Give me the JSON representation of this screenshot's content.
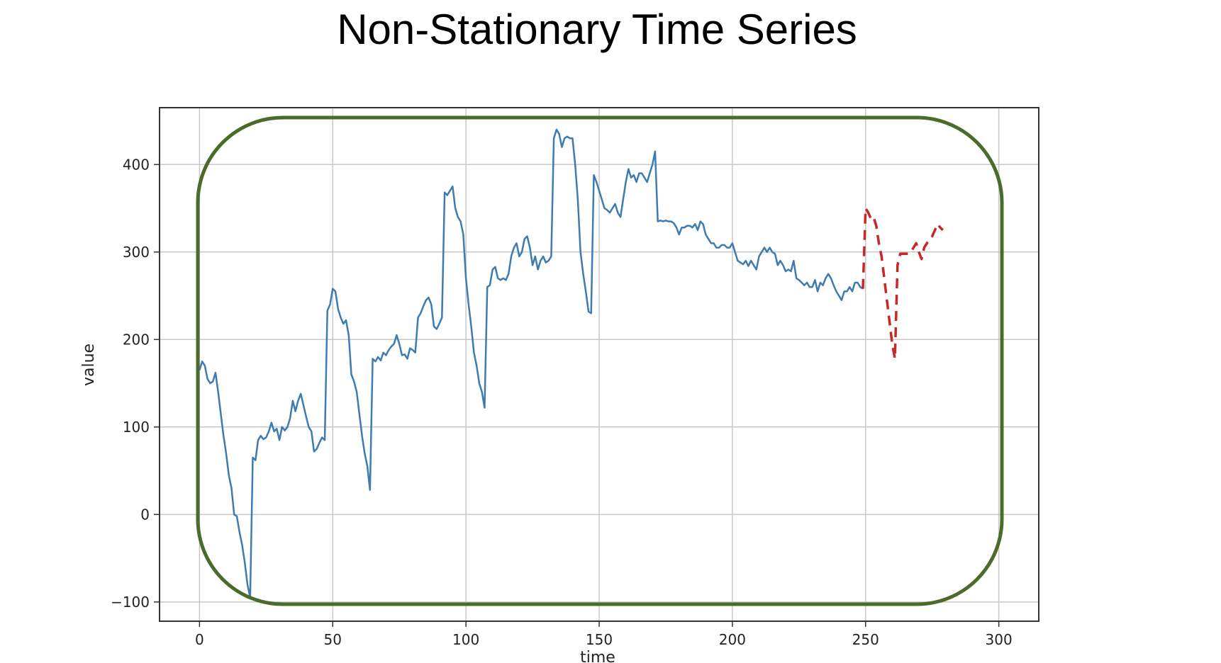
{
  "chart_data": {
    "type": "line",
    "title": "Non-Stationary Time Series",
    "xlabel": "time",
    "ylabel": "value",
    "xlim": [
      -15,
      315
    ],
    "ylim": [
      -122,
      465
    ],
    "grid": true,
    "xticks": [
      0,
      50,
      100,
      150,
      200,
      250,
      300
    ],
    "yticks": [
      -100,
      0,
      100,
      200,
      300,
      400
    ],
    "xtick_labels": [
      "0",
      "50",
      "100",
      "150",
      "200",
      "250",
      "300"
    ],
    "ytick_labels": [
      "−100",
      "0",
      "100",
      "200",
      "300",
      "400"
    ],
    "series": [
      {
        "color": "#3e7bb0",
        "style": "solid",
        "points": [
          [
            0,
            165
          ],
          [
            1,
            175
          ],
          [
            2,
            170
          ],
          [
            3,
            155
          ],
          [
            4,
            150
          ],
          [
            5,
            152
          ],
          [
            6,
            162
          ],
          [
            7,
            140
          ],
          [
            8,
            115
          ],
          [
            9,
            90
          ],
          [
            10,
            70
          ],
          [
            11,
            45
          ],
          [
            12,
            30
          ],
          [
            13,
            0
          ],
          [
            14,
            -2
          ],
          [
            15,
            -20
          ],
          [
            16,
            -35
          ],
          [
            17,
            -55
          ],
          [
            18,
            -80
          ],
          [
            19,
            -95
          ],
          [
            20,
            65
          ],
          [
            21,
            62
          ],
          [
            22,
            85
          ],
          [
            23,
            90
          ],
          [
            24,
            86
          ],
          [
            25,
            88
          ],
          [
            26,
            95
          ],
          [
            27,
            105
          ],
          [
            28,
            95
          ],
          [
            29,
            98
          ],
          [
            30,
            85
          ],
          [
            31,
            100
          ],
          [
            32,
            96
          ],
          [
            33,
            100
          ],
          [
            34,
            110
          ],
          [
            35,
            130
          ],
          [
            36,
            118
          ],
          [
            37,
            130
          ],
          [
            38,
            138
          ],
          [
            39,
            125
          ],
          [
            40,
            112
          ],
          [
            41,
            100
          ],
          [
            42,
            95
          ],
          [
            43,
            72
          ],
          [
            44,
            75
          ],
          [
            45,
            82
          ],
          [
            46,
            88
          ],
          [
            47,
            85
          ],
          [
            48,
            233
          ],
          [
            49,
            240
          ],
          [
            50,
            258
          ],
          [
            51,
            255
          ],
          [
            52,
            235
          ],
          [
            53,
            225
          ],
          [
            54,
            218
          ],
          [
            55,
            222
          ],
          [
            56,
            205
          ],
          [
            57,
            160
          ],
          [
            58,
            152
          ],
          [
            59,
            140
          ],
          [
            60,
            115
          ],
          [
            61,
            90
          ],
          [
            62,
            70
          ],
          [
            63,
            55
          ],
          [
            64,
            28
          ],
          [
            65,
            178
          ],
          [
            66,
            175
          ],
          [
            67,
            180
          ],
          [
            68,
            176
          ],
          [
            69,
            185
          ],
          [
            70,
            182
          ],
          [
            71,
            188
          ],
          [
            72,
            192
          ],
          [
            73,
            195
          ],
          [
            74,
            205
          ],
          [
            75,
            195
          ],
          [
            76,
            182
          ],
          [
            77,
            183
          ],
          [
            78,
            178
          ],
          [
            79,
            190
          ],
          [
            80,
            188
          ],
          [
            81,
            185
          ],
          [
            82,
            225
          ],
          [
            83,
            230
          ],
          [
            84,
            238
          ],
          [
            85,
            245
          ],
          [
            86,
            248
          ],
          [
            87,
            240
          ],
          [
            88,
            215
          ],
          [
            89,
            212
          ],
          [
            90,
            218
          ],
          [
            91,
            225
          ],
          [
            92,
            368
          ],
          [
            93,
            365
          ],
          [
            94,
            370
          ],
          [
            95,
            375
          ],
          [
            96,
            350
          ],
          [
            97,
            340
          ],
          [
            98,
            335
          ],
          [
            99,
            320
          ],
          [
            100,
            270
          ],
          [
            101,
            240
          ],
          [
            102,
            215
          ],
          [
            103,
            185
          ],
          [
            104,
            170
          ],
          [
            105,
            150
          ],
          [
            106,
            140
          ],
          [
            107,
            122
          ],
          [
            108,
            260
          ],
          [
            109,
            262
          ],
          [
            110,
            280
          ],
          [
            111,
            283
          ],
          [
            112,
            270
          ],
          [
            113,
            268
          ],
          [
            114,
            270
          ],
          [
            115,
            268
          ],
          [
            116,
            275
          ],
          [
            117,
            295
          ],
          [
            118,
            305
          ],
          [
            119,
            310
          ],
          [
            120,
            295
          ],
          [
            121,
            300
          ],
          [
            122,
            315
          ],
          [
            123,
            318
          ],
          [
            124,
            305
          ],
          [
            125,
            285
          ],
          [
            126,
            295
          ],
          [
            127,
            280
          ],
          [
            128,
            290
          ],
          [
            129,
            295
          ],
          [
            130,
            288
          ],
          [
            131,
            290
          ],
          [
            132,
            295
          ],
          [
            133,
            430
          ],
          [
            134,
            440
          ],
          [
            135,
            435
          ],
          [
            136,
            420
          ],
          [
            137,
            430
          ],
          [
            138,
            432
          ],
          [
            139,
            430
          ],
          [
            140,
            430
          ],
          [
            141,
            400
          ],
          [
            142,
            360
          ],
          [
            143,
            300
          ],
          [
            144,
            275
          ],
          [
            145,
            255
          ],
          [
            146,
            232
          ],
          [
            147,
            230
          ],
          [
            148,
            388
          ],
          [
            149,
            380
          ],
          [
            150,
            370
          ],
          [
            151,
            360
          ],
          [
            152,
            350
          ],
          [
            153,
            348
          ],
          [
            154,
            345
          ],
          [
            155,
            350
          ],
          [
            156,
            355
          ],
          [
            157,
            345
          ],
          [
            158,
            340
          ],
          [
            159,
            360
          ],
          [
            160,
            380
          ],
          [
            161,
            395
          ],
          [
            162,
            385
          ],
          [
            163,
            388
          ],
          [
            164,
            380
          ],
          [
            165,
            390
          ],
          [
            166,
            390
          ],
          [
            167,
            385
          ],
          [
            168,
            380
          ],
          [
            169,
            390
          ],
          [
            170,
            400
          ],
          [
            171,
            415
          ],
          [
            172,
            335
          ],
          [
            173,
            336
          ],
          [
            174,
            335
          ],
          [
            175,
            336
          ],
          [
            176,
            335
          ],
          [
            177,
            335
          ],
          [
            178,
            333
          ],
          [
            179,
            328
          ],
          [
            180,
            320
          ],
          [
            181,
            328
          ],
          [
            182,
            328
          ],
          [
            183,
            330
          ],
          [
            184,
            330
          ],
          [
            185,
            328
          ],
          [
            186,
            332
          ],
          [
            187,
            325
          ],
          [
            188,
            335
          ],
          [
            189,
            332
          ],
          [
            190,
            320
          ],
          [
            191,
            315
          ],
          [
            192,
            310
          ],
          [
            193,
            310
          ],
          [
            194,
            305
          ],
          [
            195,
            305
          ],
          [
            196,
            308
          ],
          [
            197,
            308
          ],
          [
            198,
            305
          ],
          [
            199,
            305
          ],
          [
            200,
            310
          ],
          [
            201,
            300
          ],
          [
            202,
            290
          ],
          [
            203,
            288
          ],
          [
            204,
            286
          ],
          [
            205,
            290
          ],
          [
            206,
            284
          ],
          [
            207,
            290
          ],
          [
            208,
            285
          ],
          [
            209,
            280
          ],
          [
            210,
            295
          ],
          [
            211,
            300
          ],
          [
            212,
            305
          ],
          [
            213,
            300
          ],
          [
            214,
            305
          ],
          [
            215,
            300
          ],
          [
            216,
            298
          ],
          [
            217,
            285
          ],
          [
            218,
            290
          ],
          [
            219,
            285
          ],
          [
            220,
            278
          ],
          [
            221,
            280
          ],
          [
            222,
            278
          ],
          [
            223,
            290
          ],
          [
            224,
            270
          ],
          [
            225,
            268
          ],
          [
            226,
            265
          ],
          [
            227,
            262
          ],
          [
            228,
            265
          ],
          [
            229,
            260
          ],
          [
            230,
            260
          ],
          [
            231,
            268
          ],
          [
            232,
            255
          ],
          [
            233,
            265
          ],
          [
            234,
            262
          ],
          [
            235,
            270
          ],
          [
            236,
            275
          ],
          [
            237,
            270
          ],
          [
            238,
            262
          ],
          [
            239,
            255
          ],
          [
            240,
            250
          ],
          [
            241,
            245
          ],
          [
            242,
            255
          ],
          [
            243,
            255
          ],
          [
            244,
            260
          ],
          [
            245,
            255
          ],
          [
            246,
            265
          ],
          [
            247,
            265
          ],
          [
            248,
            260
          ],
          [
            249,
            258
          ]
        ]
      },
      {
        "color": "#c62828",
        "style": "dashed",
        "points": [
          [
            249,
            258
          ],
          [
            250,
            350
          ],
          [
            251,
            345
          ],
          [
            252,
            338
          ],
          [
            253,
            340
          ],
          [
            254,
            330
          ],
          [
            255,
            310
          ],
          [
            256,
            295
          ],
          [
            257,
            270
          ],
          [
            258,
            245
          ],
          [
            259,
            220
          ],
          [
            260,
            195
          ],
          [
            261,
            178
          ],
          [
            262,
            285
          ],
          [
            263,
            298
          ],
          [
            264,
            298
          ],
          [
            265,
            298
          ],
          [
            266,
            298
          ],
          [
            267,
            300
          ],
          [
            268,
            305
          ],
          [
            269,
            310
          ],
          [
            270,
            300
          ],
          [
            271,
            292
          ],
          [
            272,
            305
          ],
          [
            273,
            310
          ],
          [
            274,
            315
          ],
          [
            275,
            318
          ],
          [
            276,
            325
          ],
          [
            277,
            332
          ],
          [
            278,
            328
          ],
          [
            279,
            325
          ]
        ]
      }
    ],
    "x_scale_note": "",
    "annotations": [
      {
        "type": "rounded-rectangle",
        "color": "#4a6b2a"
      }
    ]
  }
}
